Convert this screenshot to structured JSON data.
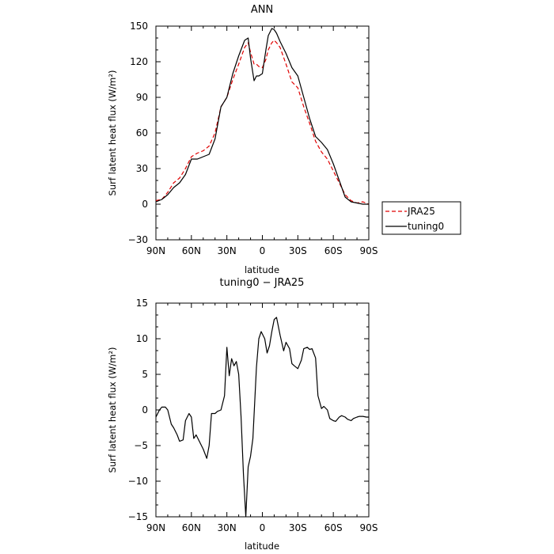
{
  "chart_data": [
    {
      "type": "line",
      "title": "ANN",
      "xlabel": "latitude",
      "ylabel": "Surf latent heat flux (W/m²)",
      "xlim": [
        90,
        -90
      ],
      "ylim": [
        -30,
        150
      ],
      "xticks": [
        90,
        60,
        30,
        0,
        -30,
        -60,
        -90
      ],
      "xtick_labels": [
        "90N",
        "60N",
        "30N",
        "0",
        "30S",
        "60S",
        "90S"
      ],
      "yticks": [
        -30,
        0,
        30,
        60,
        90,
        120,
        150
      ],
      "ytick_labels": [
        "−30",
        "0",
        "30",
        "60",
        "90",
        "120",
        "150"
      ],
      "legend_position": "right",
      "series": [
        {
          "name": "JRA25",
          "color": "#e00000",
          "dash": "dashed",
          "x": [
            90,
            85,
            80,
            75,
            70,
            65,
            60,
            55,
            50,
            45,
            40,
            35,
            30,
            25,
            20,
            15,
            12,
            10,
            7,
            5,
            3,
            0,
            -3,
            -5,
            -8,
            -10,
            -12,
            -15,
            -20,
            -25,
            -30,
            -35,
            -40,
            -45,
            -50,
            -55,
            -60,
            -65,
            -70,
            -75,
            -80,
            -85,
            -90
          ],
          "values": [
            3,
            4,
            10,
            18,
            22,
            30,
            40,
            43,
            45,
            49,
            60,
            82,
            90,
            105,
            118,
            132,
            136,
            128,
            118,
            118,
            116,
            115,
            122,
            130,
            136,
            138,
            136,
            132,
            118,
            103,
            98,
            82,
            68,
            53,
            44,
            38,
            28,
            18,
            8,
            3,
            1,
            2,
            0
          ]
        },
        {
          "name": "tuning0",
          "color": "#000000",
          "dash": "solid",
          "x": [
            90,
            85,
            80,
            75,
            70,
            65,
            60,
            55,
            50,
            45,
            40,
            35,
            30,
            25,
            20,
            15,
            12,
            10,
            7,
            5,
            3,
            0,
            -3,
            -5,
            -8,
            -10,
            -12,
            -15,
            -20,
            -25,
            -30,
            -35,
            -40,
            -45,
            -50,
            -55,
            -60,
            -65,
            -70,
            -75,
            -80,
            -85,
            -90
          ],
          "values": [
            2,
            4,
            8,
            14,
            18,
            25,
            38,
            38,
            40,
            42,
            55,
            82,
            90,
            110,
            125,
            138,
            140,
            123,
            104,
            108,
            108,
            110,
            130,
            142,
            148,
            147,
            144,
            137,
            127,
            115,
            108,
            90,
            72,
            57,
            52,
            46,
            34,
            20,
            6,
            2,
            1,
            0,
            0
          ]
        }
      ]
    },
    {
      "type": "line",
      "title": "tuning0 − JRA25",
      "xlabel": "latitude",
      "ylabel": "Surf latent heat flux (W/m²)",
      "xlim": [
        90,
        -90
      ],
      "ylim": [
        -15,
        15
      ],
      "xticks": [
        90,
        60,
        30,
        0,
        -30,
        -60,
        -90
      ],
      "xtick_labels": [
        "90N",
        "60N",
        "30N",
        "0",
        "30S",
        "60S",
        "90S"
      ],
      "yticks": [
        -15,
        -10,
        -5,
        0,
        5,
        10,
        15
      ],
      "ytick_labels": [
        "−15",
        "−10",
        "−5",
        "0",
        "5",
        "10",
        "15"
      ],
      "series": [
        {
          "name": "tuning0 − JRA25",
          "color": "#000000",
          "dash": "solid",
          "x": [
            90,
            87,
            85,
            82,
            80,
            77,
            75,
            72,
            70,
            67,
            65,
            62,
            60,
            58,
            56,
            53,
            50,
            47,
            45,
            43,
            40,
            38,
            35,
            32,
            30,
            28,
            26,
            24,
            22,
            20,
            18,
            16,
            14,
            12,
            10,
            8,
            5,
            3,
            1,
            -2,
            -4,
            -6,
            -8,
            -10,
            -12,
            -15,
            -18,
            -20,
            -23,
            -25,
            -27,
            -30,
            -33,
            -35,
            -38,
            -40,
            -42,
            -45,
            -47,
            -50,
            -52,
            -55,
            -57,
            -60,
            -62,
            -65,
            -67,
            -70,
            -72,
            -75,
            -77,
            -80,
            -82,
            -85,
            -88,
            -90
          ],
          "values": [
            -1,
            0,
            0.4,
            0.4,
            0,
            -2,
            -2.5,
            -3.5,
            -4.4,
            -4.2,
            -1.5,
            -0.5,
            -1,
            -4,
            -3.5,
            -4.5,
            -5.5,
            -6.8,
            -5,
            -0.5,
            -0.5,
            -0.2,
            0,
            2,
            8.8,
            4.8,
            7.2,
            6.2,
            6.8,
            5,
            -1,
            -9,
            -15,
            -8,
            -6.5,
            -4,
            6,
            10,
            11,
            10,
            8,
            9,
            11,
            12.7,
            13,
            10.5,
            8.3,
            9.5,
            8.6,
            6.5,
            6.2,
            5.8,
            7,
            8.6,
            8.8,
            8.5,
            8.6,
            7.3,
            2,
            0.2,
            0.5,
            0,
            -1.2,
            -1.5,
            -1.6,
            -1,
            -0.8,
            -1,
            -1.3,
            -1.5,
            -1.2,
            -1,
            -0.9,
            -0.9,
            -1,
            -1
          ]
        }
      ]
    }
  ]
}
